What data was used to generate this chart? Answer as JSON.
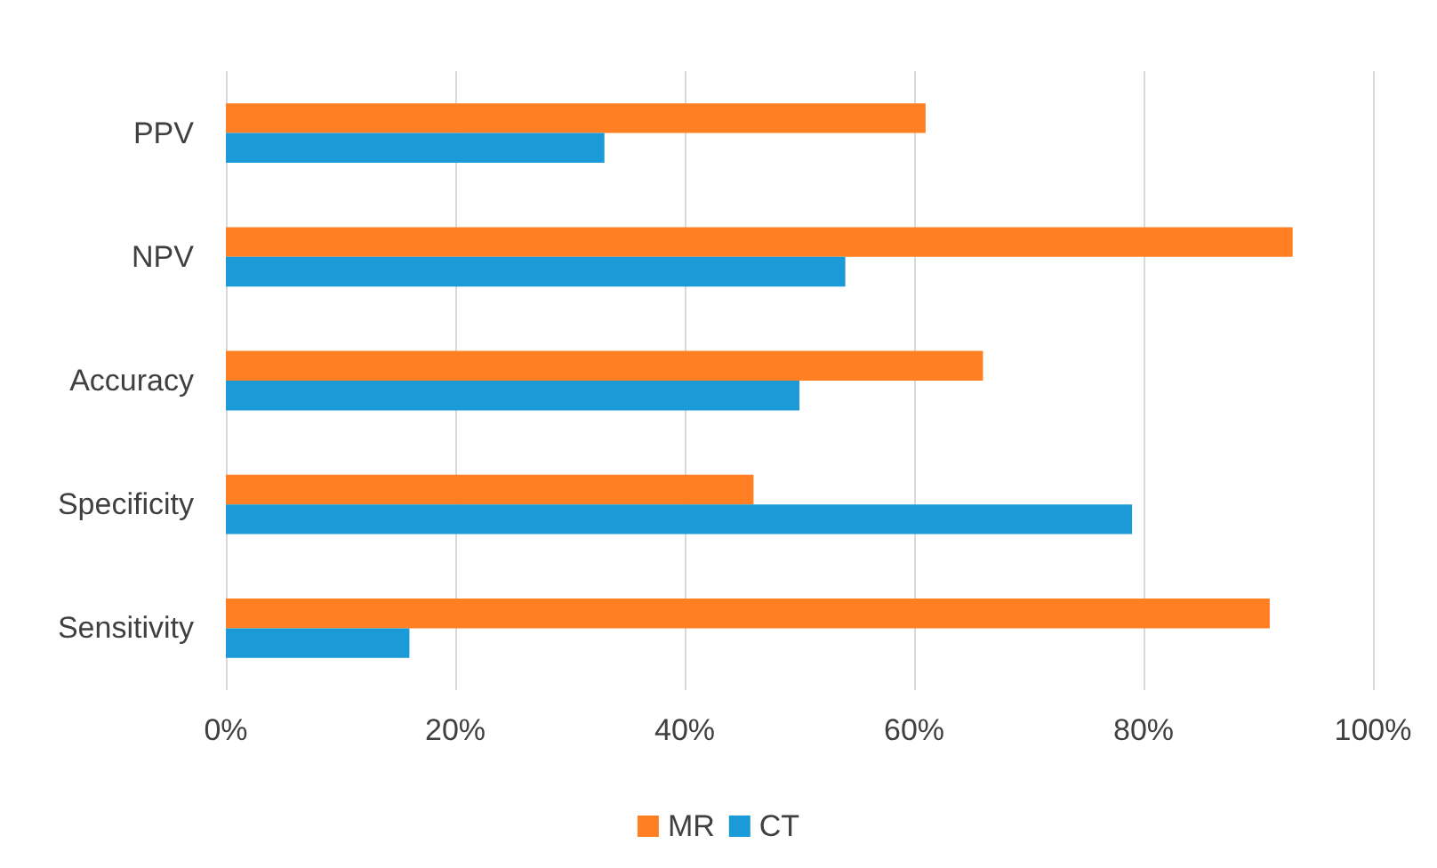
{
  "chart_data": {
    "type": "bar",
    "orientation": "horizontal",
    "categories": [
      "PPV",
      "NPV",
      "Accuracy",
      "Specificity",
      "Sensitivity"
    ],
    "series": [
      {
        "name": "MR",
        "color": "#ff7f22",
        "values": [
          61,
          93,
          66,
          46,
          91
        ]
      },
      {
        "name": "CT",
        "color": "#1a9bd7",
        "values": [
          33,
          54,
          50,
          79,
          16
        ]
      }
    ],
    "xlim": [
      0,
      100
    ],
    "xticks": [
      {
        "value": 0,
        "label": "0%"
      },
      {
        "value": 20,
        "label": "20%"
      },
      {
        "value": 40,
        "label": "40%"
      },
      {
        "value": 60,
        "label": "60%"
      },
      {
        "value": 80,
        "label": "80%"
      },
      {
        "value": 100,
        "label": "100%"
      }
    ],
    "grid": "x",
    "legend": "bottom"
  }
}
